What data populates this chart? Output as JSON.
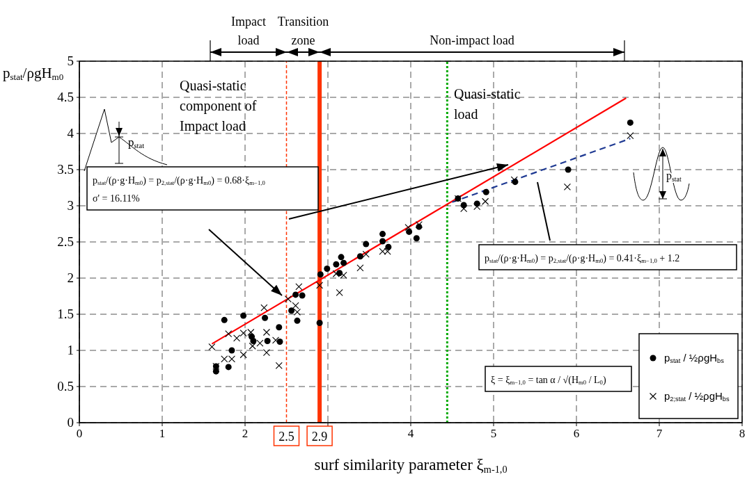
{
  "chart_data": {
    "type": "scatter",
    "xlabel": "surf similarity parameter ξ$_{m-1,0}$",
    "ylabel": "p$_{stat}$/ρgH$_{m0}$",
    "xlim": [
      0,
      8
    ],
    "ylim": [
      0,
      5
    ],
    "xticks": [
      0,
      1,
      2,
      {
        "value": 3,
        "label": null
      },
      4,
      5,
      6,
      7,
      8
    ],
    "yticks": [
      0,
      0.5,
      1,
      1.5,
      2,
      2.5,
      3,
      3.5,
      4,
      4.5,
      5
    ],
    "grid": true,
    "legend": "bottom right",
    "series": [
      {
        "name": "p$_{stat}$ / ½ρgH$_{bs}$",
        "marker": "circle",
        "color": "#000000",
        "x": [
          1.65,
          1.65,
          1.75,
          1.8,
          1.84,
          1.98,
          2.08,
          2.1,
          2.24,
          2.27,
          2.41,
          2.42,
          2.56,
          2.61,
          2.63,
          2.69,
          2.9,
          2.91,
          2.99,
          3.1,
          3.14,
          3.16,
          3.19,
          3.39,
          3.46,
          3.66,
          3.66,
          3.73,
          3.98,
          4.07,
          4.1,
          4.57,
          4.64,
          4.8,
          4.91,
          5.26,
          5.9,
          6.65
        ],
        "values": [
          0.71,
          0.78,
          1.42,
          0.77,
          1.0,
          1.48,
          1.19,
          1.13,
          1.45,
          1.13,
          1.32,
          1.12,
          1.55,
          1.77,
          1.41,
          1.76,
          1.38,
          2.05,
          2.13,
          2.19,
          2.07,
          2.29,
          2.21,
          2.3,
          2.47,
          2.51,
          2.61,
          2.43,
          2.64,
          2.55,
          2.71,
          3.1,
          3.01,
          3.03,
          3.19,
          3.33,
          3.5,
          4.15
        ]
      },
      {
        "name": "p$_{2;stat}$ / ½ρgH$_{bs}$",
        "marker": "cross",
        "color": "#000000",
        "x": [
          1.6,
          1.65,
          1.75,
          1.8,
          1.84,
          1.9,
          1.98,
          1.98,
          2.07,
          2.09,
          2.18,
          2.23,
          2.26,
          2.26,
          2.37,
          2.41,
          2.52,
          2.61,
          2.63,
          2.65,
          2.9,
          3.1,
          3.14,
          3.19,
          3.39,
          3.46,
          3.66,
          3.72,
          3.97,
          4.1,
          4.57,
          4.64,
          4.8,
          4.9,
          5.25,
          5.89,
          6.65
        ],
        "values": [
          1.05,
          0.78,
          0.88,
          1.23,
          0.88,
          1.17,
          1.24,
          0.94,
          1.25,
          1.06,
          1.1,
          1.59,
          1.25,
          0.97,
          1.14,
          0.79,
          1.71,
          1.62,
          1.53,
          1.88,
          1.9,
          2.06,
          1.8,
          2.04,
          2.14,
          2.33,
          2.37,
          2.37,
          2.7,
          2.74,
          3.1,
          2.96,
          2.99,
          3.06,
          3.36,
          3.26,
          3.97
        ]
      },
      {
        "type": "line",
        "color": "#ff0000",
        "line_style": "solid",
        "x": [
          1.6,
          6.6
        ],
        "values": [
          1.09,
          4.49
        ]
      },
      {
        "type": "line",
        "color": "#1f3a93",
        "line_style": "dashed",
        "x": [
          4.5,
          6.65
        ],
        "values": [
          3.05,
          3.93
        ]
      }
    ],
    "ref_lines": [
      {
        "axis": "x",
        "value": 2.5,
        "label": "2.5",
        "color": "#ff3300",
        "line_style": "dashed"
      },
      {
        "axis": "x",
        "value": 2.9,
        "label": "2.9",
        "color": "#ff3300",
        "line_style": "solid"
      },
      {
        "axis": "x",
        "value": 4.44,
        "label": null,
        "color": "#00aa00",
        "line_style": "dotted"
      }
    ],
    "annotations": [
      "Quasi-static component of Impact load",
      "Quasi-static load",
      "p$_{stat}$/(ρ·g·H$_{m0}$) = p$_{2,stat}$/(ρ·g·H$_{m0}$) = 0.68·ξ$_{m−1,0}$",
      "σ' = 16.11%",
      "p$_{stat}$/(ρ·g·H$_{m0}$) = p$_{2,stat}$/(ρ·g·H$_{m0}$) = 0.41·ξ$_{m−1,0}$ + 1.2",
      "ξ = ξ$_{m−1,0}$ = tan α / √(H$_{m0}$ / L$_{0}$)",
      "p$_{stat}$",
      "p$_{stat}$",
      "Impact load",
      "Transition zone",
      "Non-impact load"
    ]
  }
}
